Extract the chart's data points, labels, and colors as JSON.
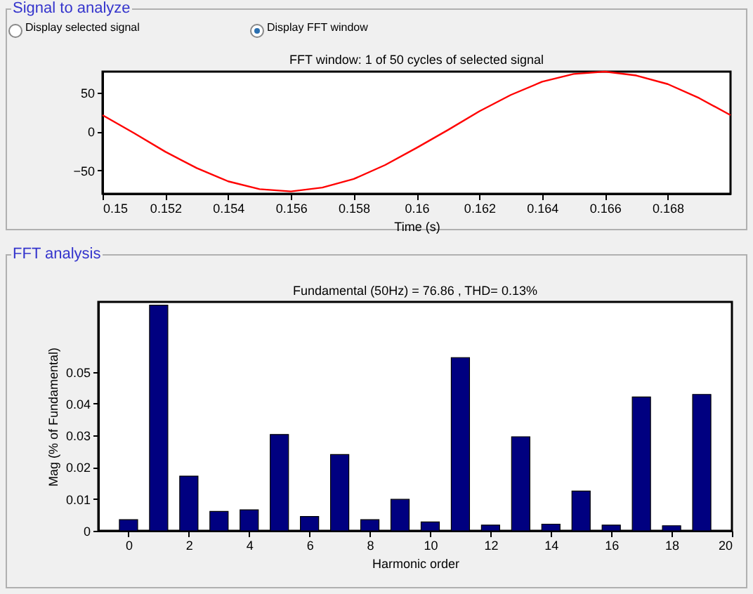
{
  "chart_data": [
    {
      "type": "line",
      "title": "FFT window: 1 of 50 cycles of selected signal",
      "xlabel": "Time (s)",
      "annotations": [
        "Signal to analyze",
        "Display selected signal",
        "Display FFT window"
      ],
      "x": [
        0.15,
        0.151,
        0.152,
        0.153,
        0.154,
        0.155,
        0.156,
        0.157,
        0.158,
        0.159,
        0.16,
        0.161,
        0.162,
        0.163,
        0.164,
        0.165,
        0.166,
        0.167,
        0.168,
        0.169,
        0.17
      ],
      "series": [
        {
          "color": "#ff0000",
          "values": [
            21,
            -2,
            -26,
            -47,
            -64,
            -74,
            -77,
            -72,
            -61,
            -43,
            -21,
            2,
            26,
            47,
            64,
            74,
            77,
            72,
            61,
            43,
            21
          ]
        }
      ],
      "xlim": [
        0.15,
        0.17
      ],
      "xticks": [
        0.15,
        0.152,
        0.154,
        0.156,
        0.158,
        0.16,
        0.162,
        0.164,
        0.166,
        0.168
      ],
      "ylim": [
        -80,
        77
      ],
      "yticks": [
        -50,
        0,
        50
      ],
      "grid": false
    },
    {
      "type": "bar",
      "title": "Fundamental (50Hz) = 76.86 , THD= 0.13%",
      "xlabel": "Harmonic order",
      "ylabel": "Mag (% of Fundamental)",
      "annotations": [
        "FFT analysis"
      ],
      "x": [
        0,
        1,
        2,
        3,
        4,
        5,
        6,
        7,
        8,
        9,
        10,
        11,
        12,
        13,
        14,
        15,
        16,
        17,
        18,
        19
      ],
      "series": [
        {
          "color": "#000080",
          "values": [
            0.0035,
            0.071,
            0.0172,
            0.0061,
            0.0066,
            0.0303,
            0.0045,
            0.024,
            0.0035,
            0.0099,
            0.0028,
            0.0545,
            0.0018,
            0.0296,
            0.0021,
            0.0125,
            0.0018,
            0.0421,
            0.0016,
            0.0429
          ]
        }
      ],
      "xlim": [
        -1,
        20
      ],
      "xticks": [
        0,
        2,
        4,
        6,
        8,
        10,
        12,
        14,
        16,
        18,
        20
      ],
      "ylim": [
        0,
        0.072
      ],
      "yticks": [
        0,
        0.01,
        0.02,
        0.03,
        0.04,
        0.05
      ],
      "grid": false
    }
  ]
}
